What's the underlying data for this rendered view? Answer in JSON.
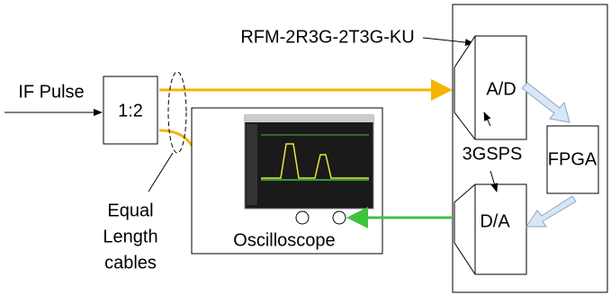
{
  "title": "RFM-2R3G-2T3G-KU",
  "input": "IF Pulse",
  "splitter": "1:2",
  "adc": "A/D",
  "dac": "D/A",
  "rate": "3GSPS",
  "fpga": "FPGA",
  "cable_note": [
    "Equal",
    "Length",
    "cables"
  ],
  "scope": "Oscilloscope"
}
